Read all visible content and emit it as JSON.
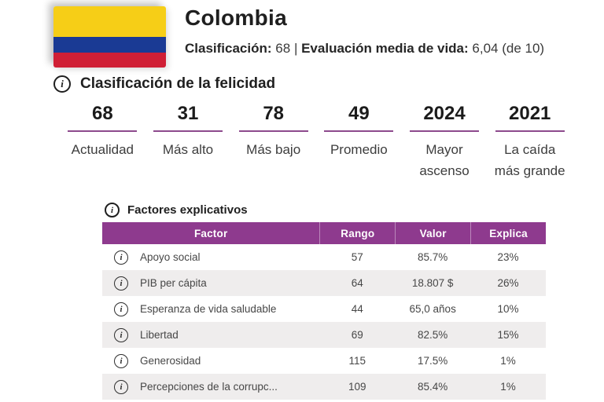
{
  "header": {
    "country": "Colombia",
    "rank_label": "Clasificación:",
    "rank_value": "68",
    "separator": "|",
    "life_eval_label": "Evaluación media de vida:",
    "life_eval_value": "6,04 (de 10)"
  },
  "icons": {
    "info": "i"
  },
  "happiness_section": {
    "title": "Clasificación de la felicidad",
    "stats": [
      {
        "value": "68",
        "label": "Actualidad"
      },
      {
        "value": "31",
        "label": "Más alto"
      },
      {
        "value": "78",
        "label": "Más bajo"
      },
      {
        "value": "49",
        "label": "Promedio"
      },
      {
        "value": "2024",
        "label": "Mayor ascenso"
      },
      {
        "value": "2021",
        "label": "La caída más grande"
      }
    ]
  },
  "factors_section": {
    "title": "Factores explicativos",
    "table": {
      "headers": {
        "factor": "Factor",
        "rango": "Rango",
        "valor": "Valor",
        "explica": "Explica"
      },
      "rows": [
        {
          "factor": "Apoyo social",
          "rango": "57",
          "valor": "85.7%",
          "explica": "23%"
        },
        {
          "factor": "PIB per cápita",
          "rango": "64",
          "valor": "18.807 $",
          "explica": "26%"
        },
        {
          "factor": "Esperanza de vida saludable",
          "rango": "44",
          "valor": "65,0 años",
          "explica": "10%"
        },
        {
          "factor": "Libertad",
          "rango": "69",
          "valor": "82.5%",
          "explica": "15%"
        },
        {
          "factor": "Generosidad",
          "rango": "115",
          "valor": "17.5%",
          "explica": "1%"
        },
        {
          "factor": "Percepciones de la corrupc...",
          "rango": "109",
          "valor": "85.4%",
          "explica": "1%"
        }
      ]
    }
  },
  "colors": {
    "accent_purple": "#8e3a8e",
    "underline_purple": "#8d4a8d",
    "flag_yellow": "#f6ce17",
    "flag_blue": "#1a3a94",
    "flag_red": "#d01f35",
    "row_alt_bg": "#efeded"
  }
}
